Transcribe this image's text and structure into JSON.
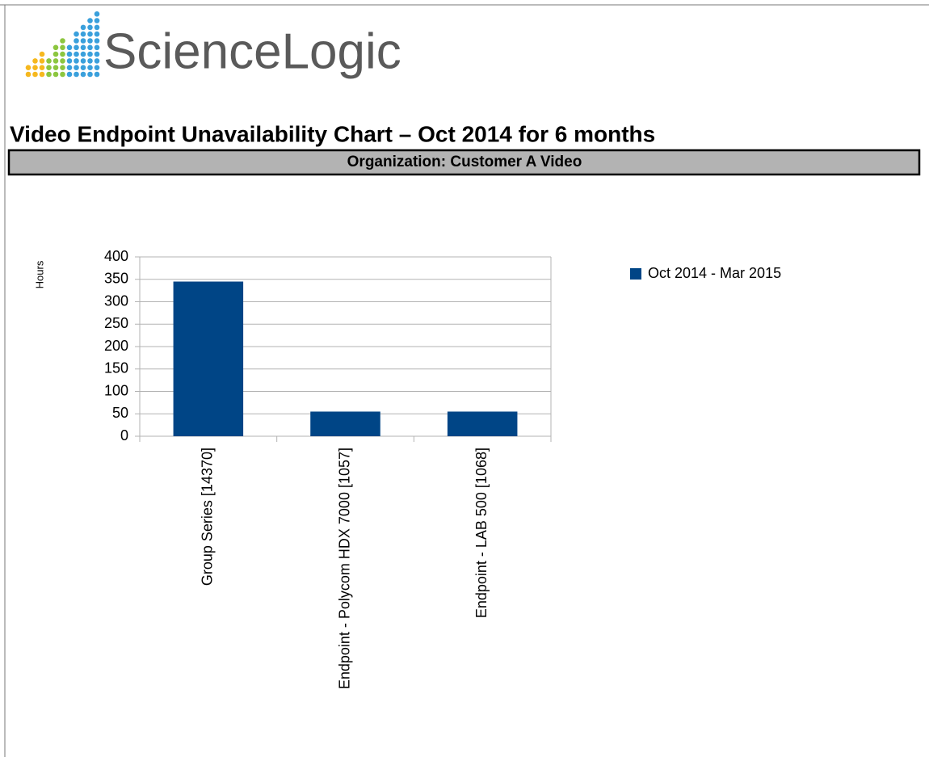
{
  "logo": "ScienceLogic",
  "heading": "Video Endpoint Unavailability Chart – Oct 2014 for 6 months",
  "organization": "Organization: Customer A Video",
  "chart_data": {
    "type": "bar",
    "y_label": "Hours",
    "categories": [
      "Group Series [14370]",
      "Endpoint - Polycom HDX 7000 [1057]",
      "Endpoint - LAB 500 [1068]"
    ],
    "series": [
      {
        "name": "Oct 2014 - Mar 2015",
        "color": "#004586",
        "values": [
          345,
          55,
          55
        ]
      }
    ],
    "ylim": [
      0,
      400
    ],
    "yticks": [
      0,
      50,
      100,
      150,
      200,
      250,
      300,
      350,
      400
    ],
    "grid": true,
    "legend": "right"
  }
}
